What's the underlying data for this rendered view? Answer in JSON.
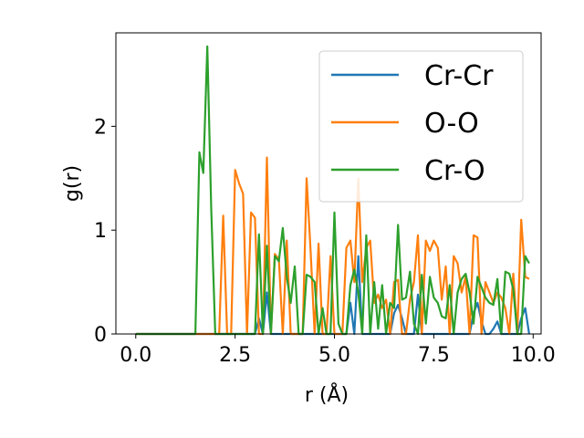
{
  "chart_data": {
    "type": "line",
    "xlabel": "r (Å)",
    "ylabel": "g(r)",
    "xlim": [
      -0.5,
      10.2
    ],
    "ylim": [
      0,
      2.9
    ],
    "xticks": [
      0.0,
      2.5,
      5.0,
      7.5,
      10.0
    ],
    "xtick_labels": [
      "0.0",
      "2.5",
      "5.0",
      "7.5",
      "10.0"
    ],
    "yticks": [
      0,
      1,
      2
    ],
    "ytick_labels": [
      "0",
      "1",
      "2"
    ],
    "grid": false,
    "legend": "top-right",
    "series": [
      {
        "name": "Cr-Cr",
        "color": "#1f77b4",
        "x": [
          0,
          2.9,
          3.0,
          3.1,
          3.2,
          3.3,
          3.4,
          5.3,
          5.4,
          5.5,
          5.6,
          5.7,
          5.8,
          6.4,
          6.5,
          6.6,
          6.7,
          6.8,
          6.9,
          7.0,
          7.1,
          7.2,
          8.4,
          8.5,
          8.6,
          8.7,
          8.8,
          8.9,
          9.0,
          9.1,
          9.2,
          9.3,
          9.6,
          9.7,
          9.8,
          9.9
        ],
        "y": [
          0,
          0,
          0,
          0.15,
          0.0,
          0.4,
          0.0,
          0.0,
          0.3,
          0.0,
          0.75,
          0.0,
          0.0,
          0.0,
          0.2,
          0.28,
          0.15,
          0.0,
          0.0,
          0.0,
          0.38,
          0.0,
          0.0,
          0.2,
          0.3,
          0.12,
          0.0,
          0.0,
          0.05,
          0.12,
          0.0,
          0.0,
          0.0,
          0.15,
          0.25,
          0.0
        ]
      },
      {
        "name": "O-O",
        "color": "#ff7f0e",
        "x": [
          0,
          2.1,
          2.2,
          2.3,
          2.4,
          2.5,
          2.6,
          2.7,
          2.8,
          2.9,
          3.0,
          3.1,
          3.2,
          3.3,
          3.4,
          3.5,
          3.6,
          3.7,
          3.8,
          3.9,
          4.0,
          4.1,
          4.2,
          4.3,
          4.4,
          4.5,
          4.6,
          4.7,
          4.8,
          4.9,
          5.0,
          5.1,
          5.2,
          5.3,
          5.4,
          5.5,
          5.6,
          5.7,
          5.8,
          5.9,
          6.0,
          6.1,
          6.2,
          6.3,
          6.4,
          6.5,
          6.6,
          6.7,
          6.8,
          6.9,
          7.0,
          7.1,
          7.2,
          7.3,
          7.4,
          7.5,
          7.6,
          7.7,
          7.8,
          7.9,
          8.0,
          8.1,
          8.2,
          8.3,
          8.4,
          8.5,
          8.6,
          8.7,
          8.8,
          8.9,
          9.0,
          9.1,
          9.2,
          9.3,
          9.4,
          9.5,
          9.6,
          9.7,
          9.8,
          9.9
        ],
        "y": [
          0,
          0,
          1.14,
          0,
          0,
          1.58,
          1.45,
          1.35,
          0,
          1.17,
          1.12,
          0,
          0.0,
          1.7,
          0.0,
          0.77,
          0.72,
          0.0,
          0.9,
          0.0,
          0.0,
          0.0,
          0.0,
          1.5,
          0.8,
          0.0,
          0.87,
          0.0,
          0.0,
          0.75,
          0.0,
          0.0,
          0.0,
          0.83,
          0.9,
          0.5,
          1.5,
          0.5,
          0.83,
          0.9,
          0.3,
          0.38,
          0.25,
          0.33,
          0.0,
          0.5,
          0.52,
          0.0,
          0.0,
          0.33,
          0.5,
          0.95,
          0.0,
          0.9,
          0.8,
          0.9,
          0.83,
          0.33,
          0.65,
          0.0,
          0.75,
          0.68,
          0.4,
          0.55,
          0.0,
          0.95,
          0.93,
          0.0,
          0.5,
          0.4,
          0.3,
          0.4,
          0.35,
          0.25,
          0.0,
          0.58,
          0.0,
          1.1,
          0.55,
          0.53
        ]
      },
      {
        "name": "Cr-O",
        "color": "#2ca02c",
        "x": [
          0,
          1.5,
          1.6,
          1.7,
          1.8,
          1.9,
          2.0,
          2.1,
          2.2,
          2.3,
          2.4,
          2.5,
          2.6,
          2.7,
          2.8,
          2.9,
          3.0,
          3.1,
          3.2,
          3.3,
          3.4,
          3.5,
          3.6,
          3.7,
          3.8,
          3.9,
          4.0,
          4.1,
          4.2,
          4.3,
          4.4,
          4.5,
          4.6,
          4.7,
          4.8,
          4.9,
          5.0,
          5.1,
          5.2,
          5.3,
          5.4,
          5.5,
          5.6,
          5.7,
          5.8,
          5.9,
          6.0,
          6.1,
          6.2,
          6.3,
          6.4,
          6.5,
          6.6,
          6.7,
          6.8,
          6.9,
          7.0,
          7.1,
          7.2,
          7.3,
          7.4,
          7.5,
          7.6,
          7.7,
          7.8,
          7.9,
          8.0,
          8.1,
          8.2,
          8.3,
          8.4,
          8.5,
          8.6,
          8.7,
          8.8,
          8.9,
          9.0,
          9.1,
          9.2,
          9.3,
          9.4,
          9.5,
          9.6,
          9.7,
          9.8,
          9.9
        ],
        "y": [
          0,
          0,
          1.75,
          1.55,
          2.77,
          1.2,
          0.0,
          0,
          0,
          0,
          0,
          0,
          0,
          0,
          0,
          0,
          0.0,
          0.96,
          0.0,
          0.85,
          0.0,
          0.75,
          0.7,
          1.02,
          0.55,
          0.3,
          0.65,
          0.0,
          0.0,
          0.57,
          0.55,
          0.5,
          0.0,
          0.25,
          0.0,
          0.0,
          1.17,
          0.1,
          0.0,
          0.0,
          0.47,
          0.62,
          0.4,
          0.0,
          0.95,
          0.0,
          0.5,
          0.05,
          0.47,
          0.0,
          0.3,
          0.25,
          1.05,
          0.33,
          0.35,
          0.6,
          0.1,
          0.0,
          0.57,
          0.1,
          0.55,
          0.35,
          0.3,
          0.17,
          0.15,
          0.47,
          0.0,
          0.4,
          0.53,
          0.58,
          0.4,
          0.1,
          0.55,
          0.45,
          0.35,
          0.3,
          0.28,
          0.53,
          0.0,
          0.6,
          0.58,
          0.43,
          0.0,
          0.0,
          0.75,
          0.68
        ]
      }
    ]
  }
}
